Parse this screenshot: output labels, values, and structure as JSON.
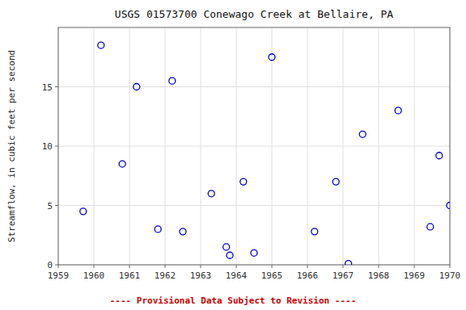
{
  "chart_data": {
    "type": "scatter",
    "title": "USGS 01573700 Conewago Creek at Bellaire, PA",
    "ylabel": "Streamflow, in cubic feet per second",
    "annotations": [
      {
        "text": "---- Provisional Data Subject to Revision ----",
        "color": "#cc0000"
      }
    ],
    "x": [
      1959.7,
      1960.2,
      1960.8,
      1961.2,
      1961.8,
      1962.2,
      1962.5,
      1963.3,
      1963.72,
      1963.82,
      1964.2,
      1964.5,
      1965.0,
      1966.2,
      1966.8,
      1967.15,
      1967.55,
      1968.55,
      1969.45,
      1969.7,
      1970.0
    ],
    "values": [
      4.5,
      18.5,
      8.5,
      15.0,
      3.0,
      15.5,
      2.8,
      6.0,
      1.5,
      0.8,
      7.0,
      1.0,
      17.5,
      2.8,
      7.0,
      0.1,
      11.0,
      13.0,
      3.2,
      9.2,
      5.0
    ],
    "color": "#0000cc",
    "marker": "circle",
    "xlim": [
      1959,
      1970
    ],
    "ylim": [
      0,
      20
    ],
    "xticks": [
      1959,
      1960,
      1961,
      1962,
      1963,
      1964,
      1965,
      1966,
      1967,
      1968,
      1969,
      1970
    ],
    "yticks": [
      0,
      5,
      10,
      15
    ],
    "grid": true
  }
}
